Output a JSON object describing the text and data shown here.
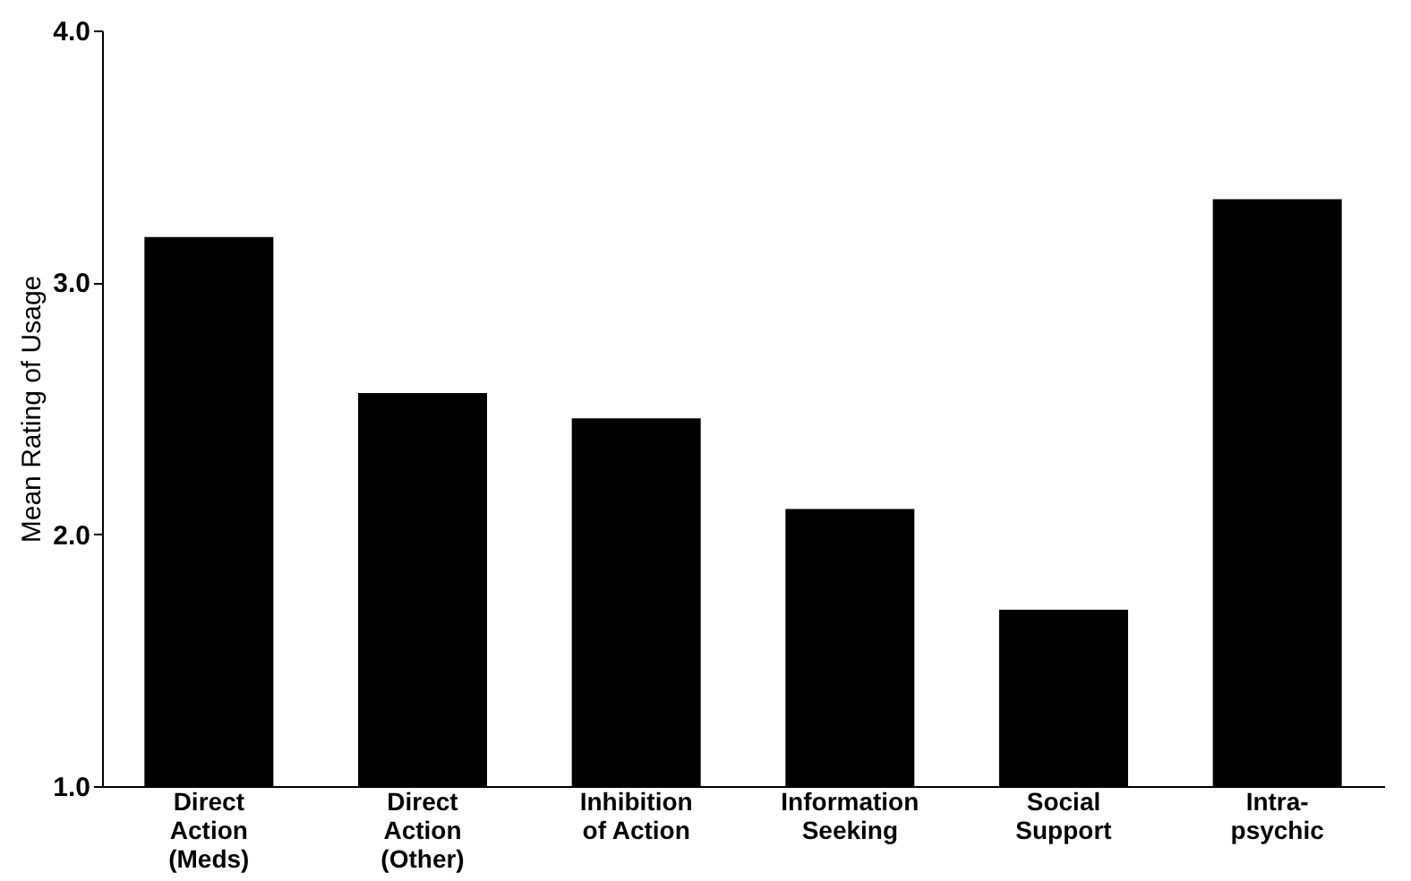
{
  "chart_data": {
    "type": "bar",
    "ylabel": "Mean Rating of Usage",
    "categories": [
      "Direct\nAction\n(Meds)",
      "Direct\nAction\n(Other)",
      "Inhibition\nof Action",
      "Information\nSeeking",
      "Social\nSupport",
      "Intra-\npsychic"
    ],
    "values": [
      3.18,
      2.56,
      2.46,
      2.1,
      1.7,
      3.33
    ],
    "color": "#000000",
    "ylim": [
      1,
      4
    ],
    "yticks": [
      {
        "value": 1,
        "label": "1.0"
      },
      {
        "value": 2,
        "label": "2.0"
      },
      {
        "value": 3,
        "label": "3.0"
      },
      {
        "value": 4,
        "label": "4.0"
      }
    ],
    "grid": false
  }
}
